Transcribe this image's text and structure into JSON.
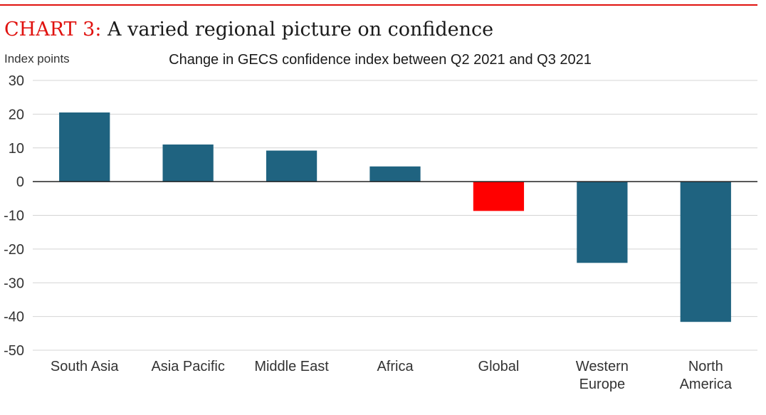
{
  "heading": {
    "label": "CHART 3:",
    "text": "A varied regional picture on confidence"
  },
  "chart_data": {
    "type": "bar",
    "title": "CHART 3: A varied regional picture on confidence",
    "subtitle": "Change in GECS confidence index between Q2 2021 and Q3 2021",
    "ylabel": "Index points",
    "xlabel": "",
    "ylim": [
      -50,
      30
    ],
    "yticks": [
      30,
      20,
      10,
      0,
      -10,
      -20,
      -30,
      -40,
      -50
    ],
    "grid": true,
    "legend": "none",
    "categories": [
      [
        "South Asia"
      ],
      [
        "Asia Pacific"
      ],
      [
        "Middle East"
      ],
      [
        "Africa"
      ],
      [
        "Global"
      ],
      [
        "Western",
        "Europe"
      ],
      [
        "North",
        "America"
      ]
    ],
    "values": [
      20.5,
      11,
      9.2,
      4.5,
      -8.7,
      -24.1,
      -41.6
    ],
    "colors": {
      "default": "#1f6380",
      "highlight": "#ff0000",
      "highlight_category": "Global",
      "accent": "#e0120f",
      "grid": "#d4d4d4",
      "axis": "#222222"
    }
  }
}
